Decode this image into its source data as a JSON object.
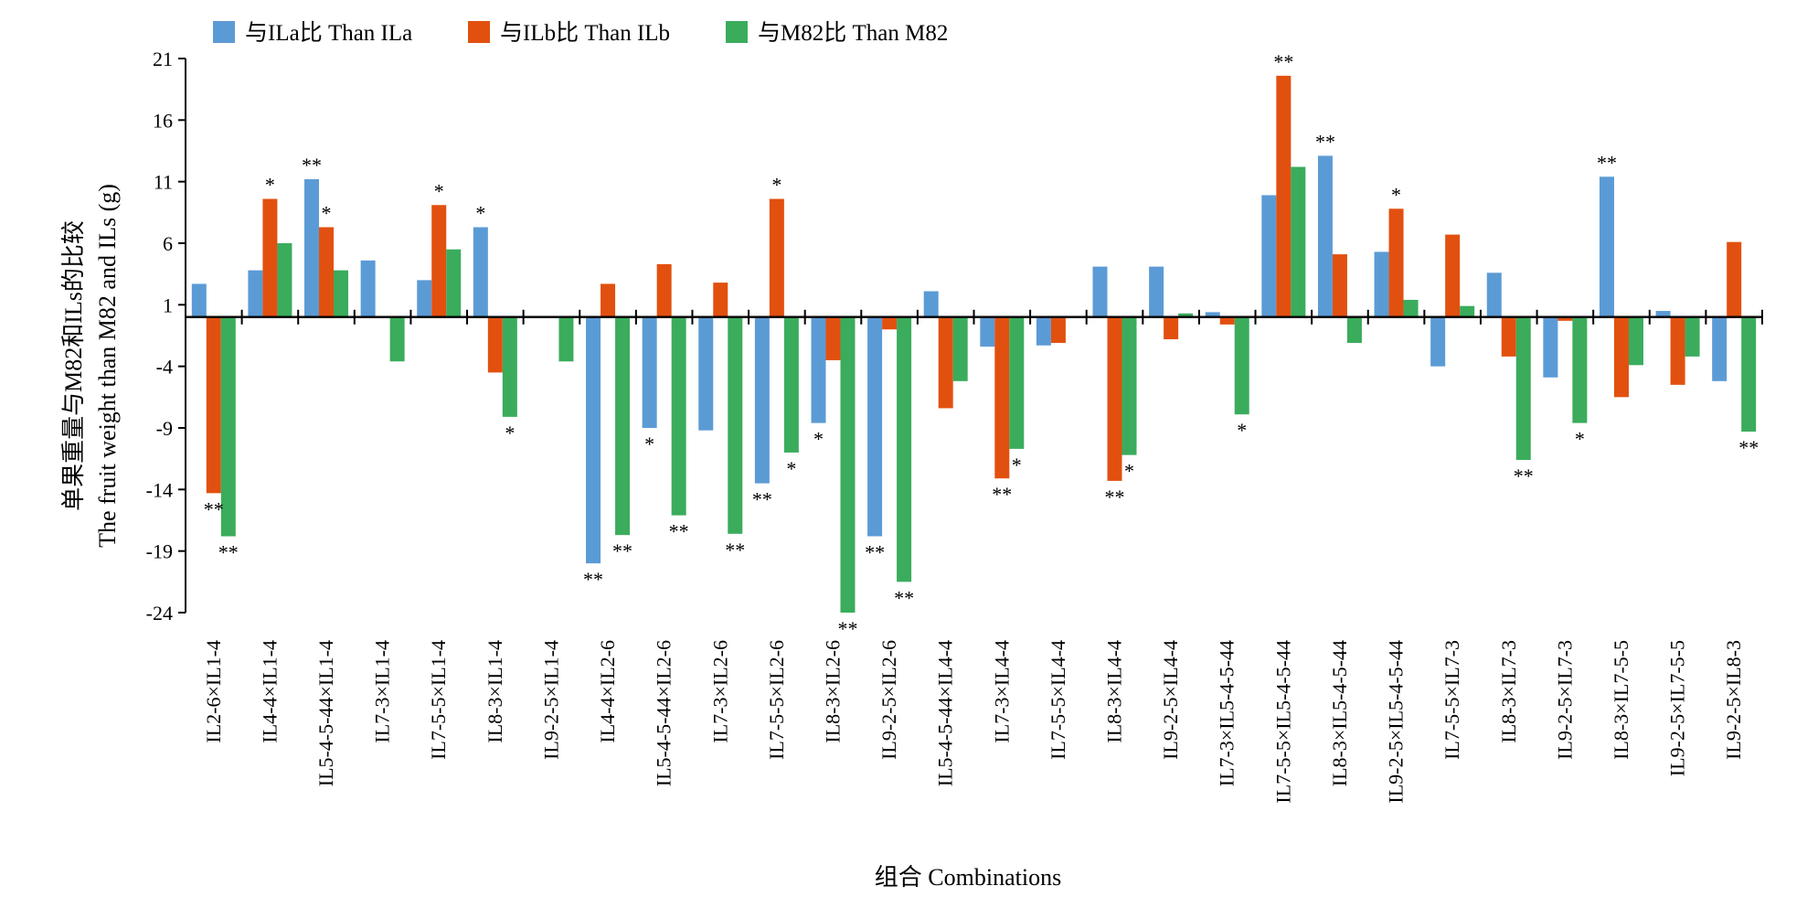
{
  "chart_data": {
    "type": "bar",
    "xlabel": "组合 Combinations",
    "ylabel_line1": "单果重量与M82和ILs的比较",
    "ylabel_line2": "The fruit weight than M82 and ILs (g)",
    "ylim": [
      -24,
      21
    ],
    "yticks": [
      21,
      16,
      11,
      6,
      1,
      -4,
      -9,
      -14,
      -19,
      -24
    ],
    "baseline": 0,
    "legend_position": "top-left",
    "grid": false,
    "categories": [
      "IL2-6×IL1-4",
      "IL4-4×IL1-4",
      "IL5-4-5-44×IL1-4",
      "IL7-3×IL1-4",
      "IL7-5-5×IL1-4",
      "IL8-3×IL1-4",
      "IL9-2-5×IL1-4",
      "IL4-4×IL2-6",
      "IL5-4-5-44×IL2-6",
      "IL7-3×IL2-6",
      "IL7-5-5×IL2-6",
      "IL8-3×IL2-6",
      "IL9-2-5×IL2-6",
      "IL5-4-5-44×IL4-4",
      "IL7-3×IL4-4",
      "IL7-5-5×IL4-4",
      "IL8-3×IL4-4",
      "IL9-2-5×IL4-4",
      "IL7-3×IL5-4-5-44",
      "IL7-5-5×IL5-4-5-44",
      "IL8-3×IL5-4-5-44",
      "IL9-2-5×IL5-4-5-44",
      "IL7-5-5×IL7-3",
      "IL8-3×IL7-3",
      "IL9-2-5×IL7-3",
      "IL8-3×IL7-5-5",
      "IL9-2-5×IL7-5-5",
      "IL9-2-5×IL8-3"
    ],
    "series": [
      {
        "name": "与ILa比 Than ILa",
        "color": "#5b9bd5",
        "values": [
          2.7,
          3.8,
          11.2,
          4.6,
          3.0,
          7.3,
          0,
          -20.0,
          -9.0,
          -9.2,
          -13.5,
          -8.6,
          -17.8,
          2.1,
          -2.4,
          -2.3,
          4.1,
          4.1,
          0.4,
          9.9,
          13.1,
          5.3,
          -4.0,
          3.6,
          -4.9,
          11.4,
          0.5,
          -5.2
        ],
        "significance": [
          "",
          "",
          "**",
          "",
          "",
          "*",
          "",
          "**",
          "*",
          "",
          "**",
          "*",
          "**",
          "",
          "",
          "",
          "",
          "",
          "",
          "",
          "**",
          "",
          "",
          "",
          "",
          "**",
          "",
          ""
        ]
      },
      {
        "name": "与ILb比 Than ILb",
        "color": "#e2500f",
        "values": [
          -14.3,
          9.6,
          7.3,
          0,
          9.1,
          -4.5,
          0,
          2.7,
          4.3,
          2.8,
          9.6,
          -3.5,
          -1.0,
          -7.4,
          -13.1,
          -2.1,
          -13.3,
          -1.8,
          -0.6,
          19.6,
          5.1,
          8.8,
          6.7,
          -3.2,
          -0.3,
          -6.5,
          -5.5,
          6.1
        ],
        "significance": [
          "**",
          "*",
          "*",
          "",
          "*",
          "",
          "",
          "",
          "",
          "",
          "*",
          "",
          "",
          "",
          "**",
          "",
          "**",
          "",
          "",
          "**",
          "",
          "*",
          "",
          "",
          "",
          "",
          "",
          ""
        ]
      },
      {
        "name": "与M82比 Than M82",
        "color": "#3aac5c",
        "values": [
          -17.8,
          6.0,
          3.8,
          -3.6,
          5.5,
          -8.1,
          -3.6,
          -17.7,
          -16.1,
          -17.6,
          -11.0,
          -24.0,
          -21.5,
          -5.2,
          -10.7,
          0,
          -11.2,
          0.3,
          -7.9,
          12.2,
          -2.1,
          1.4,
          0.9,
          -11.6,
          -8.6,
          -3.9,
          -3.2,
          -9.3
        ],
        "significance": [
          "**",
          "",
          "",
          "",
          "",
          "*",
          "",
          "**",
          "**",
          "**",
          "*",
          "**",
          "**",
          "",
          "*",
          "",
          "*",
          "",
          "*",
          "",
          "",
          "",
          "",
          "**",
          "*",
          "",
          "",
          "**"
        ]
      }
    ]
  }
}
